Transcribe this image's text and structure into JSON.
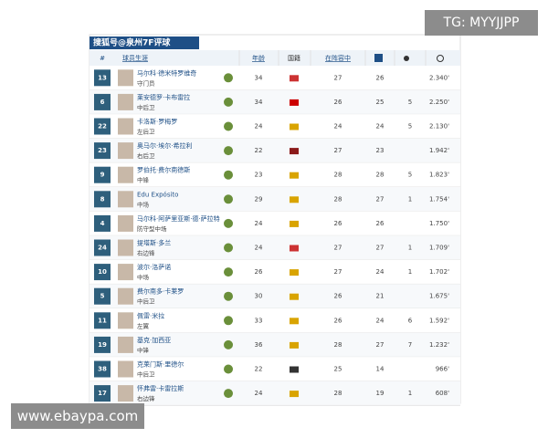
{
  "watermark": "TG: MYYJJPP",
  "footer_url": "www.ebaypa.com",
  "table": {
    "title": "搜狐号@泉州7F评球",
    "columns": [
      "#",
      "球员生涯",
      "年龄",
      "国籍",
      "在阵容中"
    ],
    "rows": [
      {
        "number": 13,
        "name": "马尔科·德米特罗维奇",
        "position": "守门员",
        "age": 34,
        "squad": 27,
        "appearances": 26,
        "goals": null,
        "minutes": "2.340'"
      },
      {
        "number": 6,
        "name": "莱安德罗·卡布雷拉",
        "position": "中后卫",
        "age": 34,
        "squad": 26,
        "appearances": 25,
        "goals": 5,
        "minutes": "2.250'"
      },
      {
        "number": 22,
        "name": "卡洛斯·罗梅罗",
        "position": "左后卫",
        "age": 24,
        "squad": 24,
        "appearances": 24,
        "goals": 5,
        "minutes": "2.130'"
      },
      {
        "number": 23,
        "name": "奥马尔·埃尔·希拉利",
        "position": "右后卫",
        "age": 22,
        "squad": 27,
        "appearances": 23,
        "goals": null,
        "minutes": "1.942'"
      },
      {
        "number": 9,
        "name": "罗伯托·费尔南德斯",
        "position": "中锋",
        "age": 23,
        "squad": 28,
        "appearances": 28,
        "goals": 5,
        "minutes": "1.823'"
      },
      {
        "number": 8,
        "name": "Edu Expósito",
        "position": "中场",
        "age": 29,
        "squad": 28,
        "appearances": 27,
        "goals": 1,
        "minutes": "1.754'"
      },
      {
        "number": 4,
        "name": "马尔科·阿萨里亚斯·德·萨拉特",
        "position": "防守型中场",
        "age": 24,
        "squad": 26,
        "appearances": 26,
        "goals": null,
        "minutes": "1.750'"
      },
      {
        "number": 24,
        "name": "提塔斯·多兰",
        "position": "右边锋",
        "age": 24,
        "squad": 27,
        "appearances": 27,
        "goals": 1,
        "minutes": "1.709'"
      },
      {
        "number": 10,
        "name": "波尔·洛萨诺",
        "position": "中场",
        "age": 26,
        "squad": 27,
        "appearances": 24,
        "goals": 1,
        "minutes": "1.702'"
      },
      {
        "number": 5,
        "name": "费尔南多·卡莱罗",
        "position": "中后卫",
        "age": 30,
        "squad": 26,
        "appearances": 21,
        "goals": null,
        "minutes": "1.675'"
      },
      {
        "number": 11,
        "name": "佩雷·米拉",
        "position": "左翼",
        "age": 33,
        "squad": 26,
        "appearances": 24,
        "goals": 6,
        "minutes": "1.592'"
      },
      {
        "number": 19,
        "name": "基克·加西亚",
        "position": "中锋",
        "age": 36,
        "squad": 28,
        "appearances": 27,
        "goals": 7,
        "minutes": "1.232'"
      },
      {
        "number": 38,
        "name": "克莱门斯·里德尔",
        "position": "中后卫",
        "age": 22,
        "squad": 25,
        "appearances": 14,
        "goals": null,
        "minutes": "966'"
      },
      {
        "number": 17,
        "name": "怀弗雷·卡雷拉斯",
        "position": "右边锋",
        "age": 24,
        "squad": 28,
        "appearances": 19,
        "goals": 1,
        "minutes": "608'"
      }
    ]
  }
}
